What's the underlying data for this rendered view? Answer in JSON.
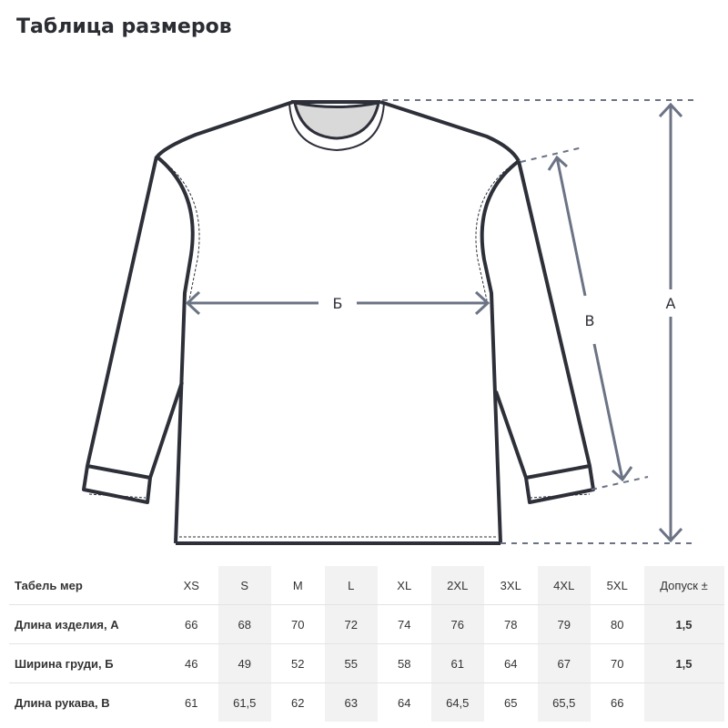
{
  "title": "Таблица размеров",
  "diagram": {
    "labels": {
      "chest": "Б",
      "sleeve": "В",
      "length": "А"
    },
    "outline_color": "#2e3039",
    "arrow_color": "#6b7385"
  },
  "table": {
    "header": [
      "Табель мер",
      "XS",
      "S",
      "M",
      "L",
      "XL",
      "2XL",
      "3XL",
      "4XL",
      "5XL",
      "Допуск ±"
    ],
    "rows": [
      [
        "Длина изделия, А",
        "66",
        "68",
        "70",
        "72",
        "74",
        "76",
        "78",
        "79",
        "80",
        "1,5"
      ],
      [
        "Ширина груди, Б",
        "46",
        "49",
        "52",
        "55",
        "58",
        "61",
        "64",
        "67",
        "70",
        "1,5"
      ],
      [
        "Длина рукава, В",
        "61",
        "61,5",
        "62",
        "63",
        "64",
        "64,5",
        "65",
        "65,5",
        "66",
        ""
      ]
    ]
  }
}
